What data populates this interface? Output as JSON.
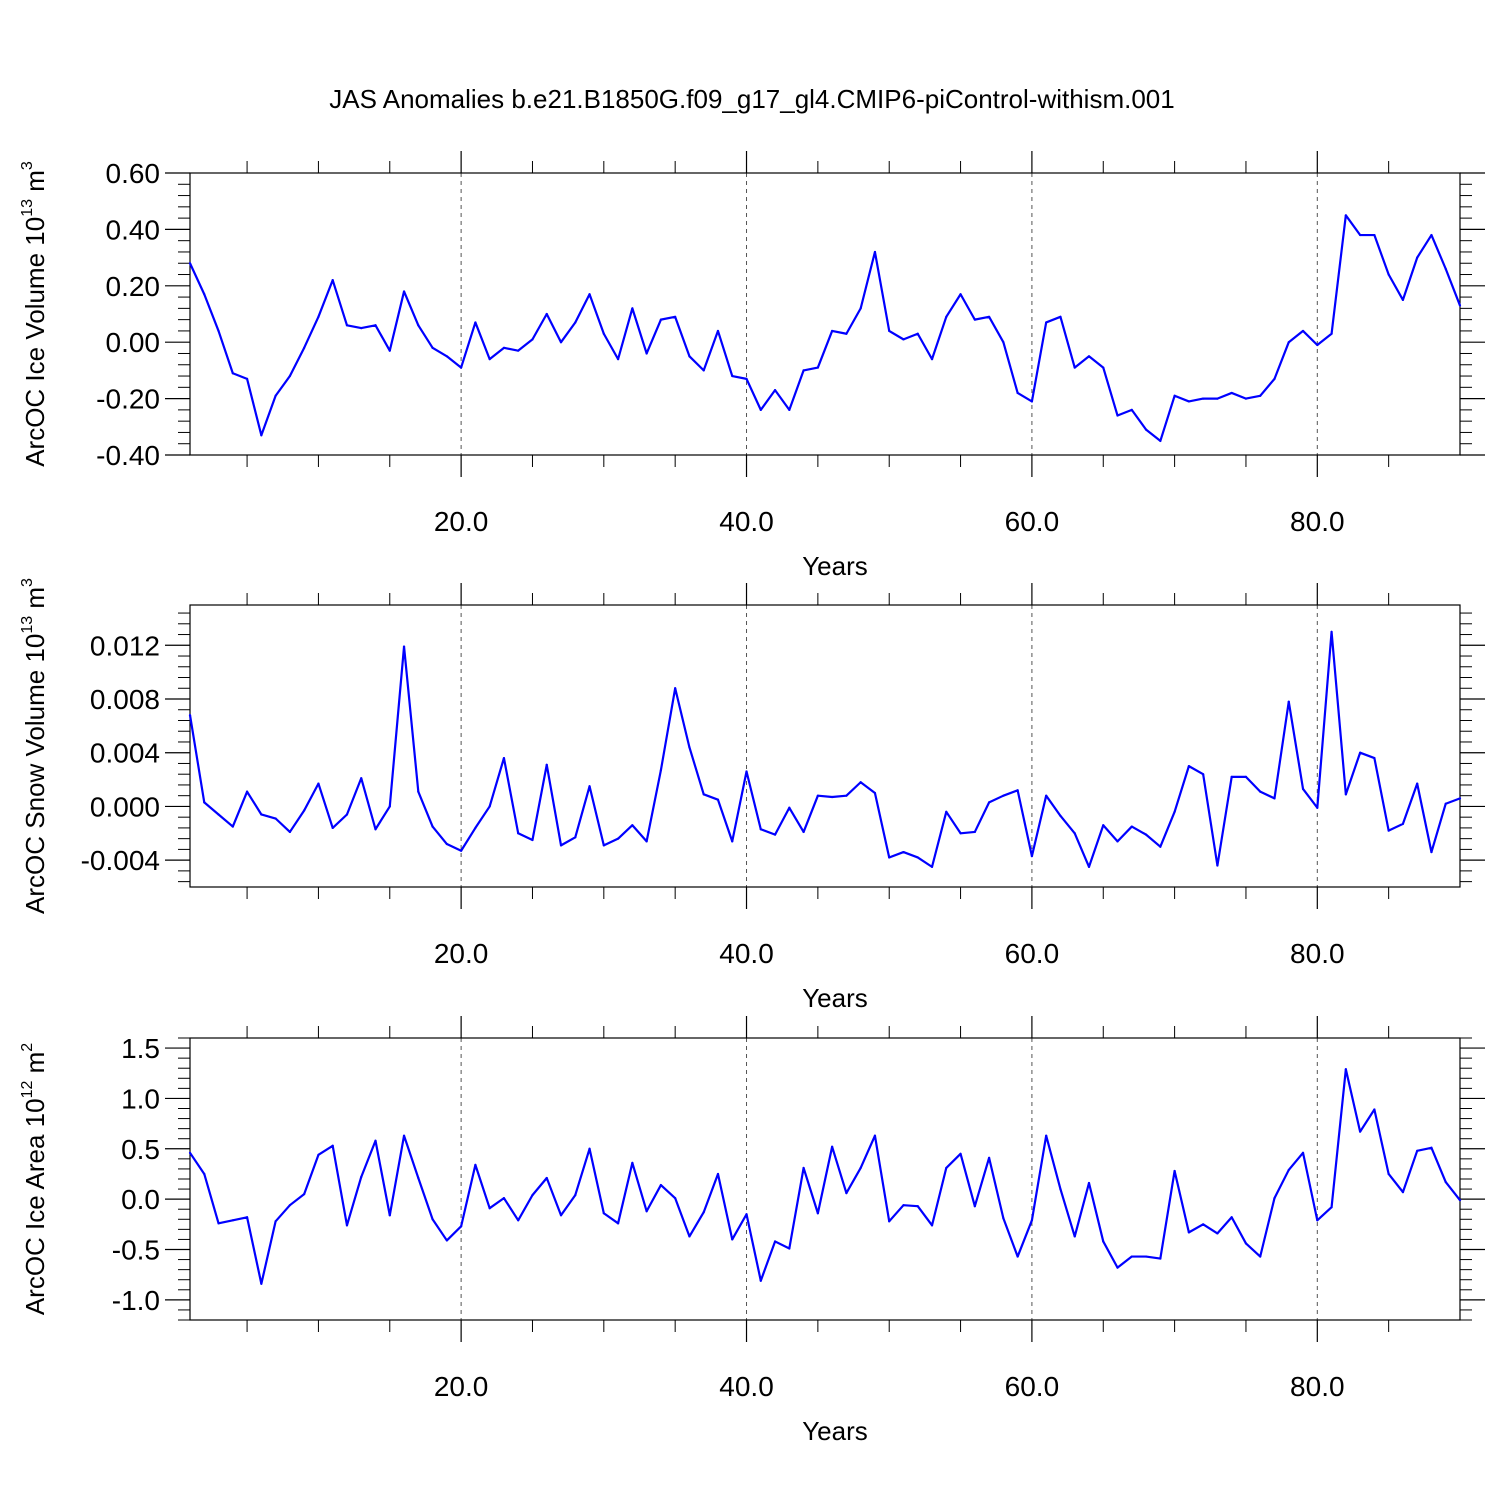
{
  "title": "JAS Anomalies b.e21.B1850G.f09_g17_gl4.CMIP6-piControl-withism.001",
  "colors": {
    "line": "#0000ff",
    "grid": "#555555"
  },
  "chart_data": [
    {
      "type": "line",
      "xlabel": "Years",
      "ylabel_main": "ArcOC Ice Volume 10",
      "ylabel_exp": "13",
      "ylabel_unit": " m",
      "ylabel_unit_exp": "3",
      "xlim": [
        1,
        90
      ],
      "ylim": [
        -0.4,
        0.6
      ],
      "grid": "vertical dashed lines at x = 20, 40, 60, 80",
      "yticks": [
        -0.4,
        -0.2,
        0.0,
        0.2,
        0.4,
        0.6
      ],
      "ytick_labels": [
        "-0.40",
        "-0.20",
        "0.00",
        "0.20",
        "0.40",
        "0.60"
      ],
      "xticks": [
        20,
        40,
        60,
        80
      ],
      "xtick_labels": [
        "20.0",
        "40.0",
        "60.0",
        "80.0"
      ],
      "series": [
        {
          "x": [
            1,
            2,
            3,
            4,
            5,
            6,
            7,
            8,
            9,
            10,
            11,
            12,
            13,
            14,
            15,
            16,
            17,
            18,
            19,
            20,
            21,
            22,
            23,
            24,
            25,
            26,
            27,
            28,
            29,
            30,
            31,
            32,
            33,
            34,
            35,
            36,
            37,
            38,
            39,
            40,
            41,
            42,
            43,
            44,
            45,
            46,
            47,
            48,
            49,
            50,
            51,
            52,
            53,
            54,
            55,
            56,
            57,
            58,
            59,
            60,
            61,
            62,
            63,
            64,
            65,
            66,
            67,
            68,
            69,
            70,
            71,
            72,
            73,
            74,
            75,
            76,
            77,
            78,
            79,
            80,
            81,
            82,
            83,
            84,
            85,
            86,
            87,
            88,
            89,
            90
          ],
          "y": [
            0.28,
            0.17,
            0.04,
            -0.11,
            -0.13,
            -0.33,
            -0.19,
            -0.12,
            -0.02,
            0.09,
            0.22,
            0.06,
            0.05,
            0.06,
            -0.03,
            0.18,
            0.06,
            -0.02,
            -0.05,
            -0.09,
            0.07,
            -0.06,
            -0.02,
            -0.03,
            0.01,
            0.1,
            0.0,
            0.07,
            0.17,
            0.03,
            -0.06,
            0.12,
            -0.04,
            0.08,
            0.09,
            -0.05,
            -0.1,
            0.04,
            -0.12,
            -0.13,
            -0.24,
            -0.17,
            -0.24,
            -0.1,
            -0.09,
            0.04,
            0.03,
            0.12,
            0.32,
            0.04,
            0.01,
            0.03,
            -0.06,
            0.09,
            0.17,
            0.08,
            0.09,
            0.0,
            -0.18,
            -0.21,
            0.07,
            0.09,
            -0.09,
            -0.05,
            -0.09,
            -0.26,
            -0.24,
            -0.31,
            -0.35,
            -0.19,
            -0.21,
            -0.2,
            -0.2,
            -0.18,
            -0.2,
            -0.19,
            -0.13,
            0.0,
            0.04,
            -0.01,
            0.03,
            0.45,
            0.38,
            0.38,
            0.24,
            0.15,
            0.3,
            0.38,
            0.26,
            0.13
          ]
        }
      ]
    },
    {
      "type": "line",
      "xlabel": "Years",
      "ylabel_main": "ArcOC Snow Volume 10",
      "ylabel_exp": "13",
      "ylabel_unit": " m",
      "ylabel_unit_exp": "3",
      "xlim": [
        1,
        90
      ],
      "ylim": [
        -0.006,
        0.015
      ],
      "grid": "vertical dashed lines at x = 20, 40, 60, 80",
      "yticks": [
        -0.004,
        0.0,
        0.004,
        0.008,
        0.012
      ],
      "ytick_labels": [
        "-0.004",
        "0.000",
        "0.004",
        "0.008",
        "0.012"
      ],
      "xticks": [
        20,
        40,
        60,
        80
      ],
      "xtick_labels": [
        "20.0",
        "40.0",
        "60.0",
        "80.0"
      ],
      "series": [
        {
          "x": [
            1,
            2,
            3,
            4,
            5,
            6,
            7,
            8,
            9,
            10,
            11,
            12,
            13,
            14,
            15,
            16,
            17,
            18,
            19,
            20,
            21,
            22,
            23,
            24,
            25,
            26,
            27,
            28,
            29,
            30,
            31,
            32,
            33,
            34,
            35,
            36,
            37,
            38,
            39,
            40,
            41,
            42,
            43,
            44,
            45,
            46,
            47,
            48,
            49,
            50,
            51,
            52,
            53,
            54,
            55,
            56,
            57,
            58,
            59,
            60,
            61,
            62,
            63,
            64,
            65,
            66,
            67,
            68,
            69,
            70,
            71,
            72,
            73,
            74,
            75,
            76,
            77,
            78,
            79,
            80,
            81,
            82,
            83,
            84,
            85,
            86,
            87,
            88,
            89,
            90
          ],
          "y": [
            0.0068,
            0.0003,
            -0.0006,
            -0.0015,
            0.0011,
            -0.0006,
            -0.0009,
            -0.0019,
            -0.0003,
            0.0017,
            -0.0016,
            -0.0006,
            0.0021,
            -0.0017,
            0.0,
            0.0119,
            0.0011,
            -0.0015,
            -0.0028,
            -0.0033,
            -0.0016,
            0.0,
            0.0036,
            -0.002,
            -0.0025,
            0.0031,
            -0.0029,
            -0.0023,
            0.0015,
            -0.0029,
            -0.0024,
            -0.0014,
            -0.0026,
            0.0027,
            0.0088,
            0.0044,
            0.0009,
            0.0005,
            -0.0026,
            0.0026,
            -0.0017,
            -0.0021,
            -0.0001,
            -0.0019,
            0.0008,
            0.0007,
            0.0008,
            0.0018,
            0.001,
            -0.0038,
            -0.0034,
            -0.0038,
            -0.0045,
            -0.0004,
            -0.002,
            -0.0019,
            0.0003,
            0.0008,
            0.0012,
            -0.0037,
            0.0008,
            -0.0007,
            -0.002,
            -0.0045,
            -0.0014,
            -0.0026,
            -0.0015,
            -0.0021,
            -0.003,
            -0.0004,
            0.003,
            0.0024,
            -0.0044,
            0.0022,
            0.0022,
            0.0011,
            0.0006,
            0.0078,
            0.0013,
            -0.0001,
            0.013,
            0.0009,
            0.004,
            0.0036,
            -0.0018,
            -0.0013,
            0.0017,
            -0.0034,
            0.0002,
            0.0006
          ]
        }
      ]
    },
    {
      "type": "line",
      "xlabel": "Years",
      "ylabel_main": "ArcOC Ice Area 10",
      "ylabel_exp": "12",
      "ylabel_unit": " m",
      "ylabel_unit_exp": "2",
      "xlim": [
        1,
        90
      ],
      "ylim": [
        -1.2,
        1.6
      ],
      "grid": "vertical dashed lines at x = 20, 40, 60, 80",
      "yticks": [
        -1.0,
        -0.5,
        0.0,
        0.5,
        1.0,
        1.5
      ],
      "ytick_labels": [
        "-1.0",
        "-0.5",
        "0.0",
        "0.5",
        "1.0",
        "1.5"
      ],
      "xticks": [
        20,
        40,
        60,
        80
      ],
      "xtick_labels": [
        "20.0",
        "40.0",
        "60.0",
        "80.0"
      ],
      "series": [
        {
          "x": [
            1,
            2,
            3,
            4,
            5,
            6,
            7,
            8,
            9,
            10,
            11,
            12,
            13,
            14,
            15,
            16,
            17,
            18,
            19,
            20,
            21,
            22,
            23,
            24,
            25,
            26,
            27,
            28,
            29,
            30,
            31,
            32,
            33,
            34,
            35,
            36,
            37,
            38,
            39,
            40,
            41,
            42,
            43,
            44,
            45,
            46,
            47,
            48,
            49,
            50,
            51,
            52,
            53,
            54,
            55,
            56,
            57,
            58,
            59,
            60,
            61,
            62,
            63,
            64,
            65,
            66,
            67,
            68,
            69,
            70,
            71,
            72,
            73,
            74,
            75,
            76,
            77,
            78,
            79,
            80,
            81,
            82,
            83,
            84,
            85,
            86,
            87,
            88,
            89,
            90
          ],
          "y": [
            0.46,
            0.25,
            -0.24,
            -0.21,
            -0.18,
            -0.84,
            -0.22,
            -0.06,
            0.05,
            0.44,
            0.53,
            -0.26,
            0.22,
            0.58,
            -0.16,
            0.63,
            0.21,
            -0.2,
            -0.41,
            -0.27,
            0.34,
            -0.09,
            0.01,
            -0.21,
            0.04,
            0.21,
            -0.16,
            0.04,
            0.5,
            -0.14,
            -0.24,
            0.36,
            -0.12,
            0.14,
            0.01,
            -0.37,
            -0.13,
            0.25,
            -0.4,
            -0.15,
            -0.81,
            -0.42,
            -0.49,
            0.31,
            -0.14,
            0.52,
            0.06,
            0.31,
            0.63,
            -0.22,
            -0.06,
            -0.07,
            -0.26,
            0.31,
            0.45,
            -0.07,
            0.41,
            -0.19,
            -0.57,
            -0.21,
            0.63,
            0.1,
            -0.37,
            0.16,
            -0.42,
            -0.68,
            -0.57,
            -0.57,
            -0.59,
            0.28,
            -0.33,
            -0.25,
            -0.34,
            -0.18,
            -0.44,
            -0.57,
            0.01,
            0.29,
            0.46,
            -0.21,
            -0.08,
            1.29,
            0.67,
            0.89,
            0.25,
            0.07,
            0.48,
            0.51,
            0.17,
            -0.01
          ]
        }
      ]
    }
  ]
}
